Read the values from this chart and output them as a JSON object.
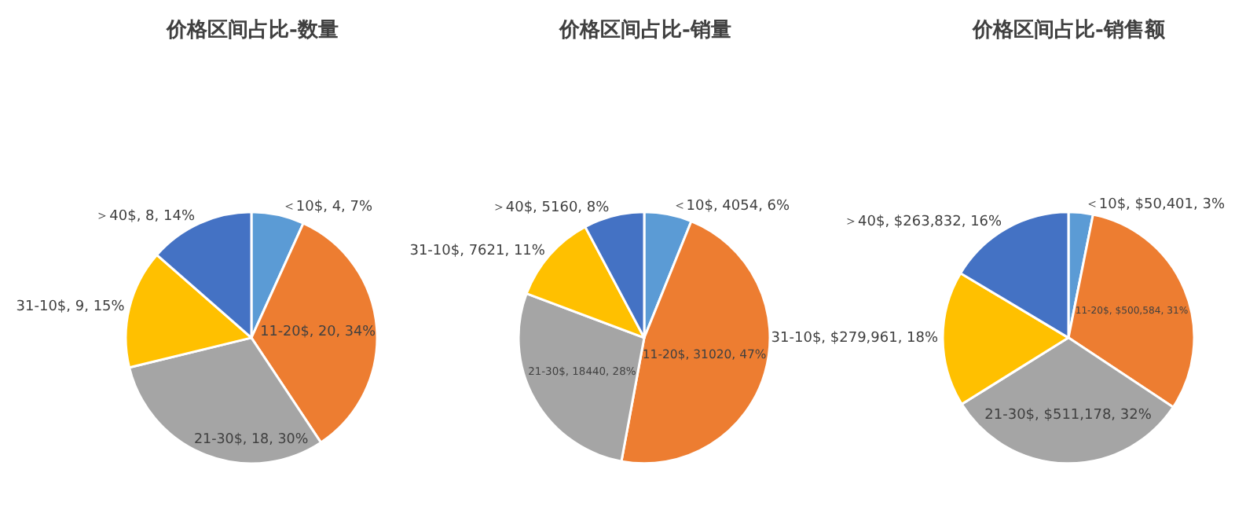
{
  "chart_data": [
    {
      "type": "pie",
      "title": "价格区间占比-数量",
      "categories": [
        "＜10$",
        "11-20$",
        "21-30$",
        "31-10$",
        "＞40$"
      ],
      "values": [
        4,
        20,
        18,
        9,
        8
      ],
      "colors": [
        "#5b9bd5",
        "#ed7d31",
        "#a5a5a5",
        "#ffc000",
        "#4472c4"
      ],
      "value_labels": [
        "4, 7%",
        "20, 34%",
        "18, 30%",
        "9, 15%",
        "8, 14%"
      ],
      "legend": false
    },
    {
      "type": "pie",
      "title": "价格区间占比-销量",
      "categories": [
        "＜10$",
        "11-20$",
        "21-30$",
        "31-10$",
        "＞40$"
      ],
      "values": [
        4054,
        31020,
        18440,
        7621,
        5160
      ],
      "colors": [
        "#5b9bd5",
        "#ed7d31",
        "#a5a5a5",
        "#ffc000",
        "#4472c4"
      ],
      "value_labels": [
        "4054, 6%",
        "31020, 47%",
        "18440, 28%",
        "7621, 11%",
        "5160, 8%"
      ],
      "legend": false
    },
    {
      "type": "pie",
      "title": "价格区间占比-销售额",
      "categories": [
        "＜10$",
        "11-20$",
        "21-30$",
        "31-10$",
        "＞40$"
      ],
      "values": [
        50401,
        500584,
        511178,
        279961,
        263832
      ],
      "colors": [
        "#5b9bd5",
        "#ed7d31",
        "#a5a5a5",
        "#ffc000",
        "#4472c4"
      ],
      "value_labels": [
        "$50,401, 3%",
        "$500,584, 31%",
        "$511,178, 32%",
        "$279,961, 18%",
        "$263,832, 16%"
      ],
      "legend": false
    }
  ]
}
